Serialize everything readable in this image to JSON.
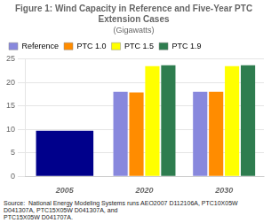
{
  "chart_data": {
    "type": "bar",
    "title": "Figure 1: Wind Capacity in Reference and Five-Year PTC Extension Cases",
    "subtitle": "(Gigawatts)",
    "categories": [
      "2005",
      "2020",
      "2030"
    ],
    "series": [
      {
        "name": "Reference",
        "color": "#8888dd",
        "colors": [
          "#00008b",
          "#8888dd",
          "#8888dd"
        ],
        "values": [
          9.7,
          18.0,
          18.0
        ]
      },
      {
        "name": "PTC 1.0",
        "color": "#ff8c00",
        "values": [
          null,
          17.9,
          18.0
        ]
      },
      {
        "name": "PTC 1.5",
        "color": "#ffff00",
        "values": [
          null,
          23.5,
          23.5
        ]
      },
      {
        "name": "PTC 1.9",
        "color": "#2e7d4f",
        "values": [
          null,
          23.7,
          23.7
        ]
      }
    ],
    "ylim": [
      0,
      25
    ],
    "yticks": [
      0,
      5,
      10,
      15,
      20,
      25
    ],
    "grid": true,
    "legend": "upper left",
    "annotations": [
      "Source:  National Energy Modeling Systems runs AEO2007 D112106A, PTC10X05W D041307A, PTC15X05W D041307A, and\nPTC15X05W D041707A."
    ]
  }
}
